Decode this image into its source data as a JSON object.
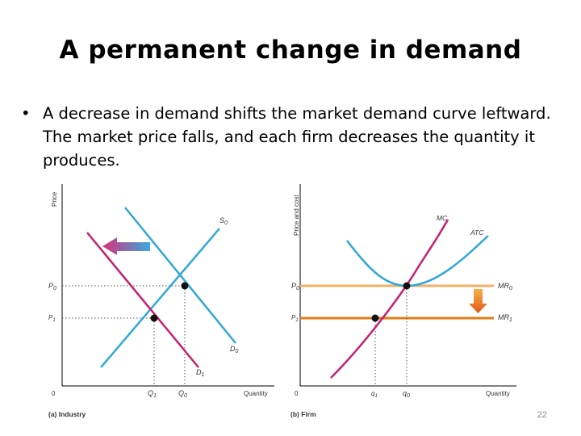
{
  "slide": {
    "title": "A permanent change in demand",
    "bullet": "A decrease in demand shifts the market demand curve leftward. The market price falls, and each firm decreases the quantity it produces.",
    "page_number": "22"
  },
  "panel_a": {
    "caption": "(a) Industry",
    "y_axis_label": "Price",
    "x_axis_label": "Quantity",
    "origin": "0",
    "supply_label": "S",
    "supply_sub": "0",
    "demand0_label": "D",
    "demand0_sub": "0",
    "demand1_label": "D",
    "demand1_sub": "1",
    "p0_label": "P",
    "p0_sub": "0",
    "p1_label": "P",
    "p1_sub": "1",
    "q1_label": "Q",
    "q1_sub": "1",
    "q0_label": "Q",
    "q0_sub": "0"
  },
  "panel_b": {
    "caption": "(b) Firm",
    "y_axis_label": "Price and cost",
    "x_axis_label": "Quantity",
    "origin": "0",
    "mc_label": "MC",
    "atc_label": "ATC",
    "mr0_label": "MR",
    "mr0_sub": "0",
    "mr1_label": "MR",
    "mr1_sub": "1",
    "p0_label": "P",
    "p0_sub": "0",
    "p1_label": "P",
    "p1_sub": "1",
    "q1_label": "q",
    "q1_sub": "1",
    "q0_label": "q",
    "q0_sub": "0"
  },
  "colors": {
    "supply": "#2fa8d8",
    "demand": "#c81e6e",
    "mc": "#c81e6e",
    "atc": "#2fa8d8",
    "mr0": "#f2b06a",
    "mr1": "#e07d1a",
    "arrow_left": "#d9307a",
    "arrow_down": "#e8782a"
  }
}
